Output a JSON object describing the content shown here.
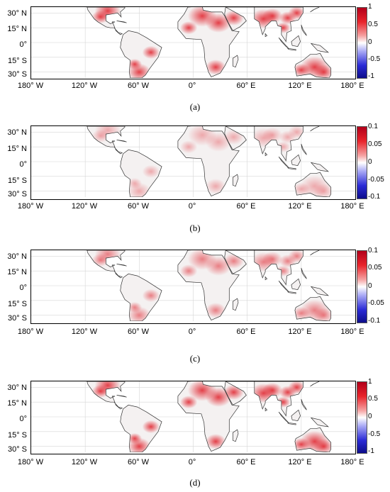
{
  "panels": [
    {
      "id": "a",
      "caption": "(a)",
      "colorbar": [
        "1",
        "0.5",
        "0",
        "-0.5",
        "-1"
      ],
      "intensity": "high"
    },
    {
      "id": "b",
      "caption": "(b)",
      "colorbar": [
        "0.1",
        "0.05",
        "0",
        "-0.05",
        "-0.1"
      ],
      "intensity": "low"
    },
    {
      "id": "c",
      "caption": "(c)",
      "colorbar": [
        "0.1",
        "0.05",
        "0",
        "-0.05",
        "-0.1"
      ],
      "intensity": "medium"
    },
    {
      "id": "d",
      "caption": "(d)",
      "colorbar": [
        "1",
        "0.5",
        "0",
        "-0.5",
        "-1"
      ],
      "intensity": "high"
    }
  ],
  "lat_labels": [
    "30° N",
    "15° N",
    "0°",
    "15° S",
    "30° S"
  ],
  "lon_labels": [
    "180° W",
    "120° W",
    "60° W",
    "0°",
    "60° E",
    "120° E",
    "180° E"
  ],
  "colors": {
    "positive": "#e0202a",
    "negative": "#2020c8",
    "neutral": "#ffffff",
    "coast": "#333333",
    "grid": "#d6d6d6"
  }
}
